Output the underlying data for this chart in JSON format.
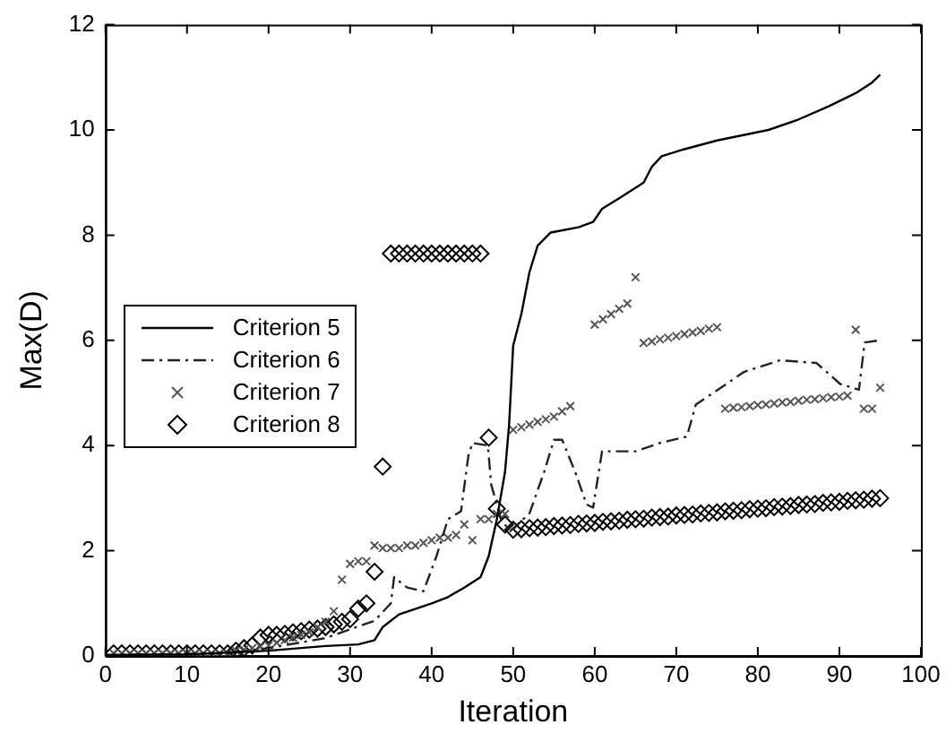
{
  "chart_data": {
    "type": "line",
    "xlabel": "Iteration",
    "ylabel": "Max(D)",
    "xlim": [
      0,
      100
    ],
    "xticks": [
      0,
      10,
      20,
      30,
      40,
      50,
      60,
      70,
      80,
      90,
      100
    ],
    "ylim": [
      0,
      12
    ],
    "yticks": [
      0,
      2,
      4,
      6,
      8,
      10,
      12
    ],
    "grid": false,
    "legend": "left",
    "series": [
      {
        "name": "Criterion 5",
        "color": "#000000",
        "line_style": "solid",
        "marker": "none",
        "x": [
          0,
          10,
          20,
          27,
          31,
          33,
          34,
          36,
          40,
          42,
          44,
          46,
          47,
          48,
          49,
          49.5,
          50,
          51,
          52,
          53,
          54.6,
          58,
          59.8,
          60.9,
          63,
          66,
          67,
          68.2,
          70.9,
          75,
          81.3,
          85,
          88.7,
          92,
          94,
          95
        ],
        "values": [
          0.02,
          0.03,
          0.1,
          0.19,
          0.22,
          0.3,
          0.55,
          0.79,
          1.0,
          1.12,
          1.3,
          1.5,
          1.9,
          2.6,
          3.5,
          4.4,
          5.9,
          6.5,
          7.3,
          7.8,
          8.05,
          8.15,
          8.25,
          8.5,
          8.7,
          9.0,
          9.3,
          9.5,
          9.63,
          9.8,
          10.0,
          10.2,
          10.45,
          10.7,
          10.9,
          11.05
        ]
      },
      {
        "name": "Criterion 6",
        "color": "#222222",
        "line_style": "dashed",
        "marker": "none",
        "x": [
          0,
          15,
          20,
          27,
          33,
          35,
          35.4,
          37,
          39,
          40.6,
          42,
          43.6,
          44.5,
          45,
          46.9,
          47.3,
          48.5,
          49.6,
          52,
          53.8,
          55,
          56,
          57.6,
          59,
          59.8,
          60.9,
          65,
          68,
          71.3,
          72.4,
          75.3,
          78.3,
          82.7,
          87.2,
          90.1,
          92.4,
          93.1,
          95
        ],
        "values": [
          0.02,
          0.05,
          0.15,
          0.34,
          0.67,
          1.0,
          1.5,
          1.3,
          1.23,
          1.9,
          2.6,
          2.75,
          3.8,
          4.05,
          4.0,
          3.26,
          2.6,
          2.37,
          2.71,
          3.5,
          4.11,
          4.11,
          3.5,
          2.88,
          2.82,
          3.89,
          3.89,
          4.05,
          4.17,
          4.78,
          5.08,
          5.4,
          5.62,
          5.57,
          5.17,
          5.06,
          5.96,
          6.0
        ]
      },
      {
        "name": "Criterion 7",
        "type": "scatter",
        "color": "#555555",
        "marker": "cross",
        "x": [
          1,
          2,
          3,
          4,
          5,
          6,
          7,
          8,
          9,
          10,
          11,
          12,
          13,
          14,
          15,
          16,
          17,
          18,
          19,
          20,
          21,
          22,
          23,
          24,
          25,
          26,
          27,
          28,
          29,
          30,
          31,
          32,
          33,
          34,
          35,
          36,
          37,
          38,
          39,
          40,
          41,
          42,
          43,
          44,
          45,
          46,
          47,
          48,
          49,
          50,
          51,
          52,
          53,
          54,
          55,
          56,
          57,
          58,
          59,
          60,
          61,
          62,
          63,
          64,
          65,
          66,
          67,
          68,
          69,
          70,
          71,
          72,
          73,
          74,
          75,
          76,
          77,
          78,
          79,
          80,
          81,
          82,
          83,
          84,
          85,
          86,
          87,
          88,
          89,
          90,
          91,
          92,
          93,
          94,
          95
        ],
        "values": [
          0.05,
          0.05,
          0.05,
          0.05,
          0.05,
          0.05,
          0.05,
          0.05,
          0.05,
          0.05,
          0.05,
          0.05,
          0.05,
          0.05,
          0.05,
          0.1,
          0.12,
          0.15,
          0.18,
          0.2,
          0.25,
          0.3,
          0.35,
          0.4,
          0.45,
          0.55,
          0.65,
          0.85,
          1.45,
          1.75,
          1.8,
          1.8,
          2.1,
          2.05,
          2.05,
          2.05,
          2.1,
          2.1,
          2.15,
          2.2,
          2.25,
          2.25,
          2.3,
          2.5,
          2.2,
          2.6,
          2.6,
          2.7,
          2.7,
          4.3,
          4.35,
          4.4,
          4.45,
          4.5,
          4.55,
          4.65,
          4.75,
          null,
          null,
          6.3,
          6.4,
          6.5,
          6.6,
          6.7,
          7.2,
          5.95,
          5.98,
          6.02,
          6.05,
          6.08,
          6.12,
          6.15,
          6.18,
          6.22,
          6.25,
          4.7,
          4.72,
          4.73,
          4.75,
          4.77,
          4.78,
          4.8,
          4.82,
          4.83,
          4.85,
          4.87,
          4.88,
          4.9,
          4.92,
          4.93,
          4.95,
          6.2,
          4.7,
          4.7,
          5.1
        ]
      },
      {
        "name": "Criterion 8",
        "type": "scatter",
        "color": "#000000",
        "marker": "diamond",
        "x": [
          1,
          2,
          3,
          4,
          5,
          6,
          7,
          8,
          9,
          10,
          11,
          12,
          13,
          14,
          15,
          16,
          17,
          18,
          19,
          20,
          21,
          22,
          23,
          24,
          25,
          26,
          27,
          28,
          29,
          30,
          31,
          32,
          33,
          34,
          35,
          36,
          37,
          38,
          39,
          40,
          41,
          42,
          43,
          44,
          45,
          46,
          47,
          48,
          49,
          50,
          51,
          52,
          53,
          54,
          55,
          56,
          57,
          58,
          59,
          60,
          61,
          62,
          63,
          64,
          65,
          66,
          67,
          68,
          69,
          70,
          71,
          72,
          73,
          74,
          75,
          76,
          77,
          78,
          79,
          80,
          81,
          82,
          83,
          84,
          85,
          86,
          87,
          88,
          89,
          90,
          91,
          92,
          93,
          94,
          95
        ],
        "values": [
          0.05,
          0.05,
          0.05,
          0.05,
          0.05,
          0.05,
          0.05,
          0.05,
          0.05,
          0.05,
          0.05,
          0.05,
          0.05,
          0.05,
          0.05,
          0.1,
          0.15,
          0.2,
          0.35,
          0.4,
          0.4,
          0.42,
          0.45,
          0.47,
          0.5,
          0.52,
          0.55,
          0.6,
          0.65,
          0.7,
          0.9,
          1.0,
          1.6,
          3.6,
          7.65,
          7.65,
          7.65,
          7.65,
          7.65,
          7.65,
          7.65,
          7.65,
          7.65,
          7.65,
          7.65,
          7.65,
          4.15,
          2.8,
          2.5,
          2.4,
          2.41,
          2.43,
          2.44,
          2.45,
          2.47,
          2.48,
          2.49,
          2.51,
          2.52,
          2.53,
          2.55,
          2.56,
          2.57,
          2.59,
          2.6,
          2.61,
          2.63,
          2.64,
          2.65,
          2.67,
          2.68,
          2.69,
          2.71,
          2.72,
          2.73,
          2.75,
          2.76,
          2.77,
          2.79,
          2.8,
          2.81,
          2.83,
          2.84,
          2.85,
          2.87,
          2.88,
          2.89,
          2.91,
          2.92,
          2.93,
          2.95,
          2.96,
          2.97,
          2.99,
          3.0
        ]
      }
    ]
  }
}
